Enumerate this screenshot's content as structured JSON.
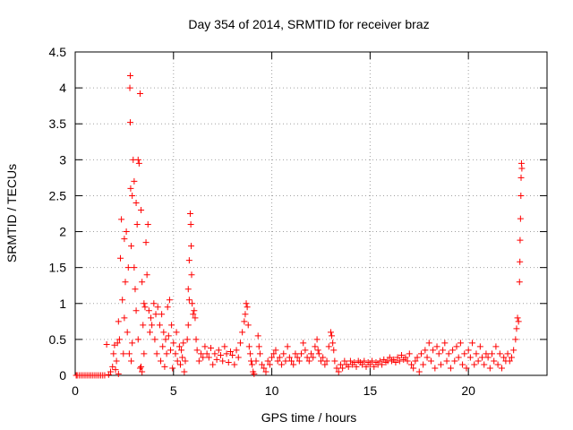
{
  "chart_data": {
    "type": "scatter",
    "title": "Day 354 of 2014, SRMTID for receiver braz",
    "xlabel": "GPS time / hours",
    "ylabel": "SRMTID / TECUs",
    "xlim": [
      0,
      24
    ],
    "ylim": [
      0,
      4.5
    ],
    "xticks": [
      0,
      5,
      10,
      15,
      20
    ],
    "yticks": [
      0,
      0.5,
      1,
      1.5,
      2,
      2.5,
      3,
      3.5,
      4,
      4.5
    ],
    "grid": true,
    "marker": "+",
    "color": "#ff0000",
    "series": [
      {
        "name": "SRMTID",
        "points": [
          [
            0.05,
            0
          ],
          [
            0.1,
            0
          ],
          [
            0.2,
            0
          ],
          [
            0.3,
            0
          ],
          [
            0.4,
            0
          ],
          [
            0.5,
            0
          ],
          [
            0.6,
            0
          ],
          [
            0.7,
            0
          ],
          [
            0.8,
            0
          ],
          [
            0.9,
            0
          ],
          [
            1.0,
            0
          ],
          [
            1.1,
            0
          ],
          [
            1.2,
            0
          ],
          [
            1.3,
            0
          ],
          [
            1.4,
            0
          ],
          [
            1.5,
            0
          ],
          [
            1.6,
            0.43
          ],
          [
            1.7,
            0.01
          ],
          [
            1.8,
            0.05
          ],
          [
            1.9,
            0.12
          ],
          [
            1.95,
            0.3
          ],
          [
            2.0,
            0.42
          ],
          [
            2.05,
            0.08
          ],
          [
            2.1,
            0.2
          ],
          [
            2.15,
            0.45
          ],
          [
            2.2,
            0.02
          ],
          [
            2.2,
            0.75
          ],
          [
            2.25,
            0.5
          ],
          [
            2.3,
            1.63
          ],
          [
            2.35,
            2.17
          ],
          [
            2.4,
            1.05
          ],
          [
            2.45,
            0.3
          ],
          [
            2.5,
            0.8
          ],
          [
            2.5,
            1.9
          ],
          [
            2.55,
            1.3
          ],
          [
            2.6,
            2.0
          ],
          [
            2.65,
            0.6
          ],
          [
            2.7,
            1.5
          ],
          [
            2.75,
            0.3
          ],
          [
            2.8,
            4.17
          ],
          [
            2.78,
            4.0
          ],
          [
            2.8,
            3.52
          ],
          [
            2.82,
            2.6
          ],
          [
            2.85,
            1.8
          ],
          [
            2.9,
            2.5
          ],
          [
            2.95,
            3.0
          ],
          [
            3.0,
            2.7
          ],
          [
            3.05,
            1.2
          ],
          [
            3.1,
            2.4
          ],
          [
            3.15,
            2.1
          ],
          [
            3.2,
            3.0
          ],
          [
            3.25,
            2.95
          ],
          [
            3.3,
            3.92
          ],
          [
            3.35,
            2.3
          ],
          [
            3.4,
            1.3
          ],
          [
            3.45,
            0.7
          ],
          [
            3.5,
            1.0
          ],
          [
            3.55,
            0.95
          ],
          [
            2.85,
            0.2
          ],
          [
            2.9,
            0.45
          ],
          [
            3.0,
            1.5
          ],
          [
            3.1,
            0.9
          ],
          [
            3.2,
            0.5
          ],
          [
            3.3,
            0.1
          ],
          [
            3.35,
            0.12
          ],
          [
            3.4,
            0.05
          ],
          [
            3.5,
            0.3
          ],
          [
            3.6,
            1.85
          ],
          [
            3.65,
            1.4
          ],
          [
            3.7,
            2.1
          ],
          [
            3.75,
            0.9
          ],
          [
            3.8,
            0.6
          ],
          [
            3.85,
            0.8
          ],
          [
            3.9,
            0.7
          ],
          [
            4.0,
            1.0
          ],
          [
            4.05,
            0.5
          ],
          [
            4.1,
            0.85
          ],
          [
            4.15,
            0.3
          ],
          [
            4.2,
            0.95
          ],
          [
            4.3,
            0.7
          ],
          [
            4.35,
            0.2
          ],
          [
            4.4,
            0.85
          ],
          [
            4.45,
            0.4
          ],
          [
            4.5,
            0.6
          ],
          [
            4.55,
            0.12
          ],
          [
            4.6,
            0.5
          ],
          [
            4.65,
            0.3
          ],
          [
            4.7,
            0.95
          ],
          [
            4.75,
            0.55
          ],
          [
            4.8,
            1.05
          ],
          [
            4.85,
            0.35
          ],
          [
            4.9,
            0.7
          ],
          [
            4.95,
            0.1
          ],
          [
            5.0,
            0.45
          ],
          [
            5.1,
            0.3
          ],
          [
            5.15,
            0.6
          ],
          [
            5.2,
            0.2
          ],
          [
            5.3,
            0.4
          ],
          [
            5.35,
            0.15
          ],
          [
            5.4,
            0.35
          ],
          [
            5.45,
            0.25
          ],
          [
            5.5,
            0.45
          ],
          [
            5.55,
            0.05
          ],
          [
            5.6,
            0.2
          ],
          [
            5.7,
            0.5
          ],
          [
            5.75,
            1.2
          ],
          [
            5.8,
            1.6
          ],
          [
            5.85,
            2.25
          ],
          [
            5.88,
            2.1
          ],
          [
            5.9,
            1.8
          ],
          [
            5.92,
            1.4
          ],
          [
            5.95,
            1.0
          ],
          [
            6.0,
            0.85
          ],
          [
            6.05,
            0.9
          ],
          [
            6.1,
            0.8
          ],
          [
            6.15,
            0.5
          ],
          [
            5.75,
            0.7
          ],
          [
            5.8,
            1.05
          ],
          [
            6.2,
            0.35
          ],
          [
            6.3,
            0.2
          ],
          [
            6.4,
            0.3
          ],
          [
            6.5,
            0.25
          ],
          [
            6.6,
            0.4
          ],
          [
            6.7,
            0.3
          ],
          [
            6.8,
            0.25
          ],
          [
            6.9,
            0.38
          ],
          [
            7.0,
            0.15
          ],
          [
            7.1,
            0.3
          ],
          [
            7.2,
            0.22
          ],
          [
            7.3,
            0.35
          ],
          [
            7.4,
            0.28
          ],
          [
            7.5,
            0.2
          ],
          [
            7.6,
            0.4
          ],
          [
            7.7,
            0.3
          ],
          [
            7.8,
            0.18
          ],
          [
            7.9,
            0.33
          ],
          [
            8.0,
            0.28
          ],
          [
            8.1,
            0.15
          ],
          [
            8.2,
            0.35
          ],
          [
            8.3,
            0.25
          ],
          [
            8.4,
            0.45
          ],
          [
            8.5,
            0.6
          ],
          [
            8.6,
            0.75
          ],
          [
            8.65,
            0.85
          ],
          [
            8.7,
            1.0
          ],
          [
            8.75,
            0.95
          ],
          [
            8.8,
            0.7
          ],
          [
            8.85,
            0.4
          ],
          [
            8.9,
            0.3
          ],
          [
            8.95,
            0.2
          ],
          [
            9.0,
            0.15
          ],
          [
            9.05,
            0.05
          ],
          [
            9.1,
            0.02
          ],
          [
            9.2,
            0.2
          ],
          [
            9.3,
            0.55
          ],
          [
            9.35,
            0.4
          ],
          [
            9.4,
            0.3
          ],
          [
            9.5,
            0.15
          ],
          [
            9.6,
            0.1
          ],
          [
            9.7,
            0.05
          ],
          [
            9.8,
            0.2
          ],
          [
            9.9,
            0.15
          ],
          [
            10.0,
            0.25
          ],
          [
            10.1,
            0.3
          ],
          [
            10.2,
            0.35
          ],
          [
            10.3,
            0.2
          ],
          [
            10.4,
            0.25
          ],
          [
            10.5,
            0.15
          ],
          [
            10.6,
            0.3
          ],
          [
            10.7,
            0.2
          ],
          [
            10.8,
            0.4
          ],
          [
            10.9,
            0.25
          ],
          [
            11.0,
            0.2
          ],
          [
            11.1,
            0.15
          ],
          [
            11.2,
            0.3
          ],
          [
            11.3,
            0.25
          ],
          [
            11.4,
            0.2
          ],
          [
            11.5,
            0.3
          ],
          [
            11.6,
            0.45
          ],
          [
            11.7,
            0.35
          ],
          [
            11.8,
            0.25
          ],
          [
            11.9,
            0.2
          ],
          [
            12.0,
            0.3
          ],
          [
            12.1,
            0.25
          ],
          [
            12.2,
            0.4
          ],
          [
            12.3,
            0.5
          ],
          [
            12.35,
            0.35
          ],
          [
            12.4,
            0.3
          ],
          [
            12.5,
            0.2
          ],
          [
            12.6,
            0.25
          ],
          [
            12.7,
            0.15
          ],
          [
            12.8,
            0.2
          ],
          [
            12.9,
            0.4
          ],
          [
            13.0,
            0.6
          ],
          [
            13.05,
            0.55
          ],
          [
            13.1,
            0.45
          ],
          [
            13.15,
            0.35
          ],
          [
            13.2,
            0.2
          ],
          [
            13.3,
            0.1
          ],
          [
            13.4,
            0.05
          ],
          [
            13.5,
            0.15
          ],
          [
            13.6,
            0.1
          ],
          [
            13.7,
            0.2
          ],
          [
            13.8,
            0.15
          ],
          [
            13.9,
            0.12
          ],
          [
            14.0,
            0.2
          ],
          [
            14.1,
            0.15
          ],
          [
            14.2,
            0.18
          ],
          [
            14.3,
            0.12
          ],
          [
            14.4,
            0.2
          ],
          [
            14.5,
            0.18
          ],
          [
            14.6,
            0.15
          ],
          [
            14.7,
            0.2
          ],
          [
            14.8,
            0.12
          ],
          [
            14.9,
            0.18
          ],
          [
            15.0,
            0.15
          ],
          [
            15.1,
            0.2
          ],
          [
            15.2,
            0.12
          ],
          [
            15.3,
            0.18
          ],
          [
            15.4,
            0.15
          ],
          [
            15.5,
            0.2
          ],
          [
            15.6,
            0.15
          ],
          [
            15.7,
            0.22
          ],
          [
            15.8,
            0.18
          ],
          [
            15.9,
            0.2
          ],
          [
            16.0,
            0.25
          ],
          [
            16.1,
            0.2
          ],
          [
            16.2,
            0.22
          ],
          [
            16.3,
            0.18
          ],
          [
            16.4,
            0.25
          ],
          [
            16.5,
            0.2
          ],
          [
            16.6,
            0.28
          ],
          [
            16.7,
            0.22
          ],
          [
            16.8,
            0.25
          ],
          [
            16.9,
            0.2
          ],
          [
            17.0,
            0.3
          ],
          [
            17.1,
            0.15
          ],
          [
            17.2,
            0.1
          ],
          [
            17.3,
            0.2
          ],
          [
            17.4,
            0.25
          ],
          [
            17.5,
            0.05
          ],
          [
            17.6,
            0.3
          ],
          [
            17.7,
            0.15
          ],
          [
            17.8,
            0.35
          ],
          [
            17.9,
            0.25
          ],
          [
            18.0,
            0.45
          ],
          [
            18.1,
            0.2
          ],
          [
            18.2,
            0.35
          ],
          [
            18.3,
            0.1
          ],
          [
            18.4,
            0.4
          ],
          [
            18.5,
            0.3
          ],
          [
            18.6,
            0.15
          ],
          [
            18.7,
            0.35
          ],
          [
            18.8,
            0.45
          ],
          [
            18.9,
            0.2
          ],
          [
            19.0,
            0.3
          ],
          [
            19.1,
            0.1
          ],
          [
            19.2,
            0.35
          ],
          [
            19.3,
            0.2
          ],
          [
            19.4,
            0.4
          ],
          [
            19.5,
            0.25
          ],
          [
            19.6,
            0.45
          ],
          [
            19.7,
            0.15
          ],
          [
            19.8,
            0.3
          ],
          [
            19.9,
            0.1
          ],
          [
            20.0,
            0.35
          ],
          [
            20.1,
            0.25
          ],
          [
            20.2,
            0.45
          ],
          [
            20.3,
            0.15
          ],
          [
            20.4,
            0.3
          ],
          [
            20.5,
            0.2
          ],
          [
            20.6,
            0.4
          ],
          [
            20.7,
            0.25
          ],
          [
            20.8,
            0.15
          ],
          [
            20.9,
            0.3
          ],
          [
            21.0,
            0.25
          ],
          [
            21.1,
            0.1
          ],
          [
            21.2,
            0.3
          ],
          [
            21.3,
            0.2
          ],
          [
            21.4,
            0.4
          ],
          [
            21.5,
            0.15
          ],
          [
            21.6,
            0.3
          ],
          [
            21.7,
            0.1
          ],
          [
            21.8,
            0.25
          ],
          [
            21.9,
            0.2
          ],
          [
            22.0,
            0.3
          ],
          [
            22.1,
            0.2
          ],
          [
            22.2,
            0.25
          ],
          [
            22.3,
            0.35
          ],
          [
            22.4,
            0.5
          ],
          [
            22.45,
            0.65
          ],
          [
            22.5,
            0.8
          ],
          [
            22.55,
            0.75
          ],
          [
            22.6,
            1.3
          ],
          [
            22.62,
            1.58
          ],
          [
            22.63,
            1.88
          ],
          [
            22.65,
            2.18
          ],
          [
            22.67,
            2.5
          ],
          [
            22.68,
            2.75
          ],
          [
            22.7,
            2.95
          ],
          [
            22.72,
            2.88
          ]
        ]
      }
    ]
  }
}
